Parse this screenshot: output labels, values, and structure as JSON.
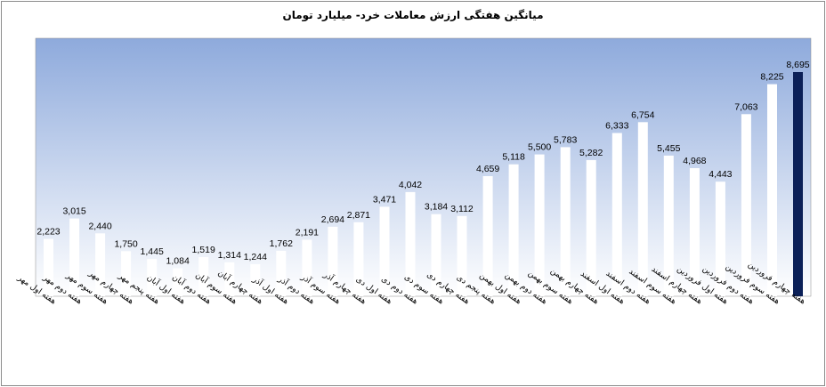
{
  "chart_data": {
    "type": "bar",
    "title": "میانگین هفتگی ارزش معاملات خرد- میلیارد تومان",
    "categories": [
      "هفته اول مهر",
      "هفته دوم مهر",
      "هفته سوم مهر",
      "هفته چهارم مهر",
      "هفته پنجم مهر",
      "هفته اول آبان",
      "هفته دوم آبان",
      "هفته سوم آبان",
      "هفته چهارم آبان",
      "هفته اول آذر",
      "هفته دوم آذر",
      "هفته سوم آذر",
      "هفته چهارم آذر",
      "هفته اول دی",
      "هفته دوم دی",
      "هفته سوم دی",
      "هفته چهارم دی",
      "هفته پنجم دی",
      "هفته اول بهمن",
      "هفته دوم بهمن",
      "هفته سوم بهمن",
      "هفته چهارم بهمن",
      "هفته اول اسفند",
      "هفته دوم اسفند",
      "هفته سوم اسفند",
      "هفته چهارم اسفند",
      "هفته اول فروردین",
      "هفته دوم فروردین",
      "هفته سوم فروردین",
      "هفته چهارم فروردین"
    ],
    "values": [
      2223,
      3015,
      2440,
      1750,
      1445,
      1084,
      1519,
      1314,
      1244,
      1762,
      2191,
      2694,
      2871,
      3471,
      4042,
      3184,
      3112,
      4659,
      5118,
      5500,
      5783,
      5282,
      6333,
      6754,
      5455,
      4968,
      4443,
      7063,
      8225,
      8695
    ],
    "data_labels": [
      "2,223",
      "3,015",
      "2,440",
      "1,750",
      "1,445",
      "1,084",
      "1,519",
      "1,314",
      "1,244",
      "1,762",
      "2,191",
      "2,694",
      "2,871",
      "3,471",
      "4,042",
      "3,184",
      "3,112",
      "4,659",
      "5,118",
      "5,500",
      "5,783",
      "5,282",
      "6,333",
      "6,754",
      "5,455",
      "4,968",
      "4,443",
      "7,063",
      "8,225",
      "8,695"
    ],
    "ylim": [
      0,
      9000
    ],
    "grid": false,
    "legend": "none",
    "colors": {
      "bar": "#ffffff",
      "highlight_bar": "#0b2058",
      "plot_top": "#8eaadc",
      "plot_bottom": "#ffffff"
    },
    "highlight_index": 29
  }
}
